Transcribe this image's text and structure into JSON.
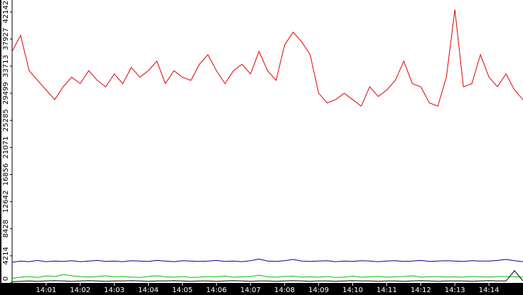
{
  "chart_data": {
    "type": "line",
    "x": [
      0,
      0.25,
      0.5,
      0.75,
      1,
      1.25,
      1.5,
      1.75,
      2,
      2.25,
      2.5,
      2.75,
      3,
      3.25,
      3.5,
      3.75,
      4,
      4.25,
      4.5,
      4.75,
      5,
      5.25,
      5.5,
      5.75,
      6,
      6.25,
      6.5,
      6.75,
      7,
      7.25,
      7.5,
      7.75,
      8,
      8.25,
      8.5,
      8.75,
      9,
      9.25,
      9.5,
      9.75,
      10,
      10.25,
      10.5,
      10.75,
      11,
      11.25,
      11.5,
      11.75,
      12,
      12.25,
      12.5,
      12.75,
      13,
      13.25,
      13.5,
      13.75,
      14,
      14.25,
      14.5,
      14.75,
      15
    ],
    "series": [
      {
        "color": "#e00000",
        "values": [
          36000,
          38500,
          33000,
          31500,
          30000,
          28500,
          30500,
          32000,
          31000,
          33000,
          31500,
          30500,
          32500,
          31000,
          33500,
          32000,
          33000,
          34500,
          31000,
          33000,
          32000,
          31500,
          34000,
          35500,
          33000,
          31000,
          33000,
          34000,
          32500,
          36000,
          33000,
          31500,
          37000,
          39000,
          37500,
          35500,
          29500,
          28000,
          28500,
          29500,
          28500,
          27500,
          30500,
          29000,
          30000,
          31500,
          34500,
          31000,
          30500,
          28000,
          27500,
          32000,
          42500,
          30500,
          31000,
          35500,
          32000,
          30500,
          32500,
          30000,
          28500
        ]
      },
      {
        "color": "#0000a0",
        "values": [
          3200,
          3400,
          3300,
          3500,
          3300,
          3400,
          3350,
          3450,
          3300,
          3400,
          3500,
          3350,
          3400,
          3300,
          3450,
          3400,
          3350,
          3500,
          3400,
          3300,
          3450,
          3400,
          3350,
          3400,
          3500,
          3350,
          3400,
          3300,
          3450,
          3700,
          3400,
          3350,
          3450,
          3650,
          3400,
          3350,
          3400,
          3450,
          3300,
          3400,
          3350,
          3450,
          3400,
          3300,
          3400,
          3450,
          3350,
          3400,
          3500,
          3350,
          3400,
          3450,
          3400,
          3350,
          3450,
          3400,
          3400,
          3500,
          3650,
          3450,
          3300
        ]
      },
      {
        "color": "#00c000",
        "values": [
          700,
          900,
          1000,
          850,
          1100,
          1000,
          1300,
          1100,
          1000,
          900,
          1000,
          1100,
          950,
          1000,
          900,
          850,
          1000,
          1100,
          950,
          900,
          1000,
          850,
          900,
          1000,
          950,
          1050,
          900,
          950,
          1000,
          1200,
          950,
          900,
          1000,
          1050,
          900,
          950,
          900,
          1000,
          850,
          900,
          1050,
          900,
          950,
          1000,
          900,
          950,
          1000,
          1100,
          900,
          950,
          1000,
          900,
          950,
          900,
          1000,
          950,
          900,
          1000,
          1000,
          950,
          900
        ]
      },
      {
        "color": "#000000",
        "values": [
          200,
          250,
          300,
          250,
          300,
          350,
          300,
          250,
          300,
          350,
          300,
          250,
          300,
          300,
          350,
          300,
          250,
          300,
          300,
          350,
          300,
          250,
          300,
          300,
          250,
          300,
          350,
          300,
          250,
          300,
          300,
          250,
          300,
          350,
          300,
          250,
          300,
          300,
          250,
          300,
          350,
          300,
          300,
          250,
          300,
          300,
          250,
          300,
          350,
          300,
          250,
          300,
          300,
          300,
          250,
          300,
          350,
          300,
          300,
          1900,
          300
        ]
      }
    ],
    "xlim": [
      0,
      15
    ],
    "xticks": [
      {
        "value": 1,
        "label": "14:01"
      },
      {
        "value": 2,
        "label": "14:02"
      },
      {
        "value": 3,
        "label": "14:03"
      },
      {
        "value": 4,
        "label": "14:04"
      },
      {
        "value": 5,
        "label": "14:05"
      },
      {
        "value": 6,
        "label": "14:06"
      },
      {
        "value": 7,
        "label": "14:07"
      },
      {
        "value": 8,
        "label": "14:08"
      },
      {
        "value": 9,
        "label": "14:09"
      },
      {
        "value": 10,
        "label": "14:10"
      },
      {
        "value": 11,
        "label": "14:11"
      },
      {
        "value": 12,
        "label": "14:12"
      },
      {
        "value": 13,
        "label": "14:13"
      },
      {
        "value": 14,
        "label": "14:14"
      }
    ],
    "ylim": [
      0,
      44000
    ],
    "yticks": [
      0,
      4214,
      8428,
      12642,
      16856,
      21071,
      25285,
      29499,
      33713,
      37927,
      42142
    ]
  }
}
